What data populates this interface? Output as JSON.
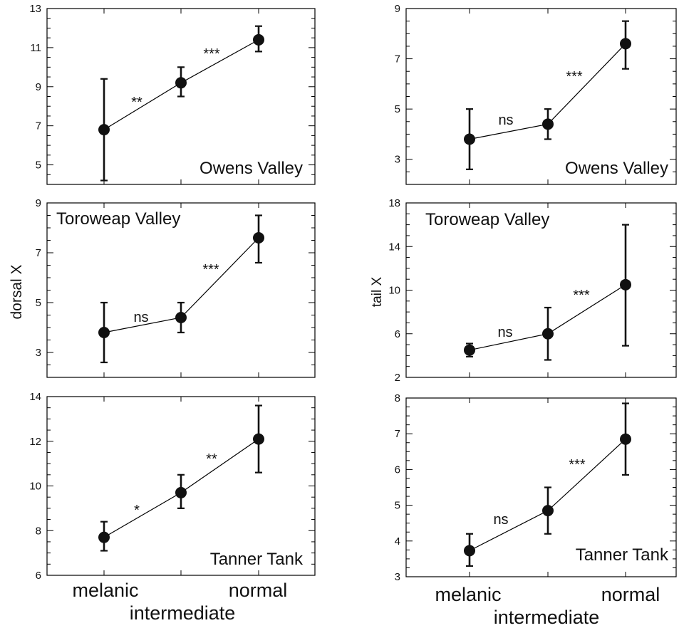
{
  "chart_data": [
    {
      "type": "scatter",
      "title": "Owens Valley",
      "ylabel": "",
      "ylim": [
        4,
        13
      ],
      "yticks": [
        5,
        7,
        9,
        11,
        13
      ],
      "categories": [
        "melanic",
        "intermediate",
        "normal"
      ],
      "means": [
        6.8,
        9.2,
        11.4
      ],
      "lower": [
        4.2,
        8.5,
        10.8
      ],
      "upper": [
        9.4,
        10.0,
        12.1
      ],
      "significance": [
        "**",
        "***"
      ]
    },
    {
      "type": "scatter",
      "title": "Owens Valley",
      "ylabel": "",
      "ylim": [
        2,
        9
      ],
      "yticks": [
        3,
        5,
        7,
        9
      ],
      "categories": [
        "melanic",
        "intermediate",
        "normal"
      ],
      "means": [
        3.8,
        4.4,
        7.6
      ],
      "lower": [
        2.6,
        3.8,
        6.6
      ],
      "upper": [
        5.0,
        5.0,
        8.5
      ],
      "significance": [
        "ns",
        "***"
      ]
    },
    {
      "type": "scatter",
      "title": "Toroweap Valley",
      "ylabel": "dorsal X",
      "ylim": [
        2,
        9
      ],
      "yticks": [
        3,
        5,
        7,
        9
      ],
      "categories": [
        "melanic",
        "intermediate",
        "normal"
      ],
      "means": [
        3.8,
        4.4,
        7.6
      ],
      "lower": [
        2.6,
        3.8,
        6.6
      ],
      "upper": [
        5.0,
        5.0,
        8.5
      ],
      "significance": [
        "ns",
        "***"
      ]
    },
    {
      "type": "scatter",
      "title": "Toroweap Valley",
      "ylabel": "tail X",
      "ylim": [
        2,
        18
      ],
      "yticks": [
        2,
        6,
        10,
        14,
        18
      ],
      "categories": [
        "melanic",
        "intermediate",
        "normal"
      ],
      "means": [
        4.5,
        6.0,
        10.5
      ],
      "lower": [
        3.9,
        3.6,
        4.9
      ],
      "upper": [
        5.1,
        8.4,
        16.0
      ],
      "significance": [
        "ns",
        "***"
      ]
    },
    {
      "type": "scatter",
      "title": "Tanner Tank",
      "ylabel": "",
      "ylim": [
        6,
        14
      ],
      "yticks": [
        6,
        8,
        10,
        12,
        14
      ],
      "categories": [
        "melanic",
        "intermediate",
        "normal"
      ],
      "means": [
        7.7,
        9.7,
        12.1
      ],
      "lower": [
        7.1,
        9.0,
        10.6
      ],
      "upper": [
        8.4,
        10.5,
        13.6
      ],
      "significance": [
        "*",
        "**"
      ]
    },
    {
      "type": "scatter",
      "title": "Tanner Tank",
      "ylabel": "",
      "ylim": [
        3,
        8
      ],
      "yticks": [
        3,
        4,
        5,
        6,
        7,
        8
      ],
      "categories": [
        "melanic",
        "intermediate",
        "normal"
      ],
      "means": [
        3.73,
        4.85,
        6.85
      ],
      "lower": [
        3.3,
        4.2,
        5.85
      ],
      "upper": [
        4.2,
        5.5,
        7.85
      ],
      "significance": [
        "ns",
        "***"
      ]
    }
  ],
  "x_axis": {
    "left": [
      "melanic",
      "intermediate",
      "normal"
    ],
    "right": [
      "melanic",
      "intermediate",
      "normal"
    ]
  },
  "colors": {
    "ink": "#111111",
    "background": "#ffffff"
  }
}
